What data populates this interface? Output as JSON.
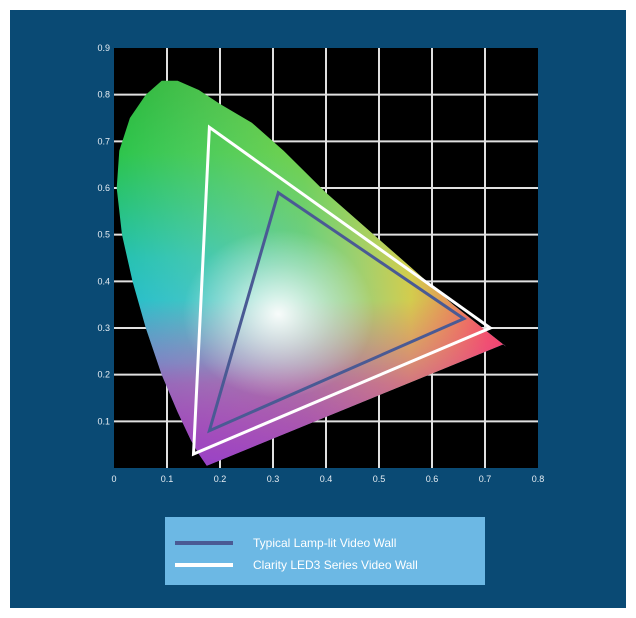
{
  "chart_data": {
    "type": "scatter",
    "title": "",
    "xlabel": "",
    "ylabel": "",
    "xlim": [
      0,
      0.8
    ],
    "ylim": [
      0,
      0.9
    ],
    "x_ticks": [
      "0",
      "0.1",
      "0.2",
      "0.3",
      "0.4",
      "0.5",
      "0.6",
      "0.7",
      "0.8"
    ],
    "y_ticks": [
      "0.1",
      "0.2",
      "0.3",
      "0.4",
      "0.5",
      "0.6",
      "0.7",
      "0.8",
      "0.9"
    ],
    "grid": true,
    "legend_position": "bottom",
    "spectral_locus": [
      [
        0.175,
        0.005
      ],
      [
        0.16,
        0.03
      ],
      [
        0.145,
        0.06
      ],
      [
        0.12,
        0.12
      ],
      [
        0.09,
        0.2
      ],
      [
        0.06,
        0.3
      ],
      [
        0.035,
        0.4
      ],
      [
        0.015,
        0.5
      ],
      [
        0.005,
        0.6
      ],
      [
        0.01,
        0.68
      ],
      [
        0.03,
        0.75
      ],
      [
        0.06,
        0.8
      ],
      [
        0.09,
        0.83
      ],
      [
        0.12,
        0.83
      ],
      [
        0.16,
        0.81
      ],
      [
        0.2,
        0.78
      ],
      [
        0.26,
        0.74
      ],
      [
        0.32,
        0.68
      ],
      [
        0.4,
        0.59
      ],
      [
        0.48,
        0.51
      ],
      [
        0.56,
        0.43
      ],
      [
        0.64,
        0.35
      ],
      [
        0.74,
        0.26
      ],
      [
        0.735,
        0.265
      ],
      [
        0.175,
        0.005
      ]
    ],
    "series": [
      {
        "name": "Typical Lamp-lit Video Wall",
        "color": "#4a5a94",
        "points": [
          [
            0.31,
            0.59
          ],
          [
            0.66,
            0.32
          ],
          [
            0.18,
            0.08
          ]
        ]
      },
      {
        "name": "Clarity LED3 Series Video Wall",
        "color": "#ffffff",
        "points": [
          [
            0.18,
            0.73
          ],
          [
            0.71,
            0.3
          ],
          [
            0.15,
            0.03
          ]
        ]
      }
    ]
  },
  "colors": {
    "background": "#0a4a74",
    "plot_area": "#000000",
    "grid": "#e0e0e0",
    "legend_box": "#6cb8e4"
  }
}
